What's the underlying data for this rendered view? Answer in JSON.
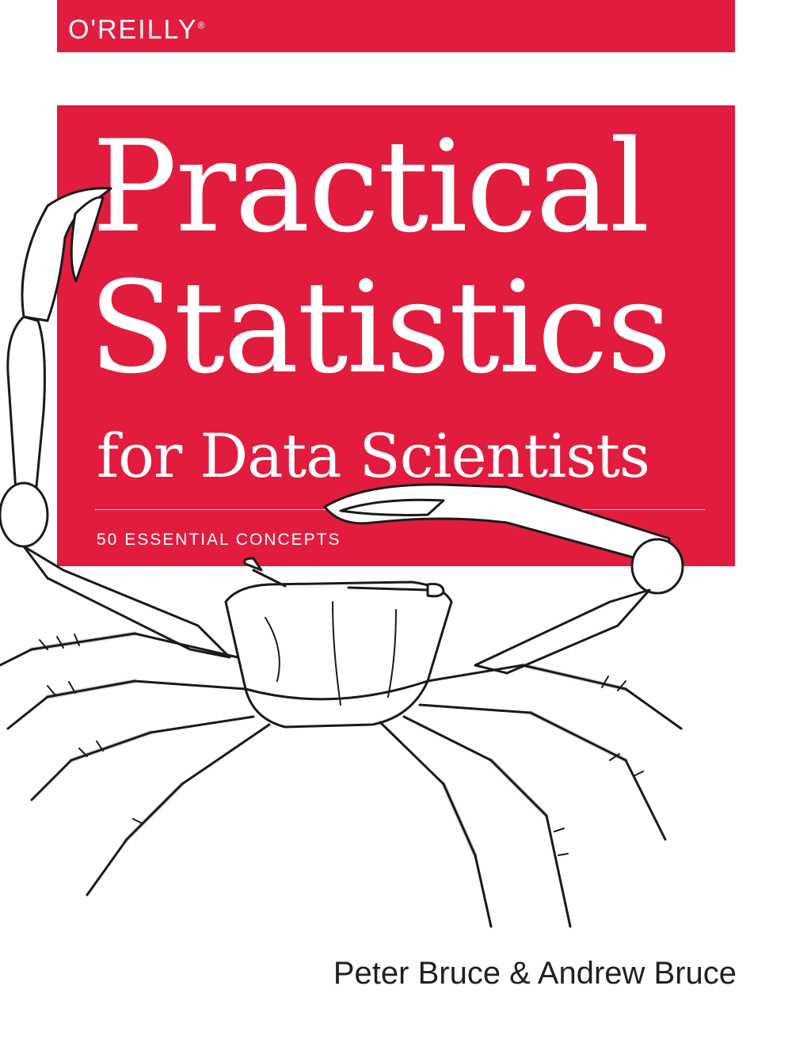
{
  "publisher": {
    "name": "O'REILLY",
    "trademark": "®",
    "brand_color": "#e11c3f"
  },
  "title": {
    "line1": "Practical",
    "line2": "Statistics",
    "subtitle": "for Data Scientists"
  },
  "tagline": "50 ESSENTIAL CONCEPTS",
  "authors": "Peter Bruce & Andrew Bruce",
  "illustration": {
    "subject": "crab-illustration"
  }
}
